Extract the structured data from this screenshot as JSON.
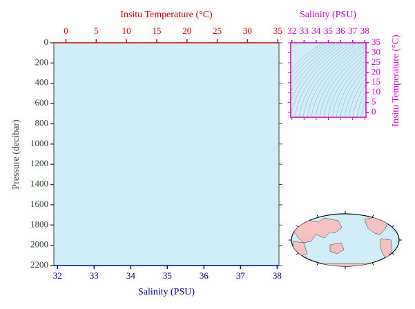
{
  "chart_data": [
    {
      "type": "line",
      "y_label": "Pressure (decibar)",
      "ylim": [
        0,
        2200
      ],
      "yticks": [
        0,
        200,
        400,
        600,
        800,
        1000,
        1200,
        1400,
        1600,
        1800,
        2000,
        2200
      ],
      "y_inverted": true,
      "x_label": "Salinity (PSU)",
      "xlim": [
        31.9,
        38.05
      ],
      "xticks": [
        32,
        33,
        34,
        35,
        36,
        37,
        38
      ],
      "x2_label": "Insitu Temperature (°C)",
      "x2lim": [
        -2,
        35.2
      ],
      "x2ticks": [
        0,
        5,
        10,
        15,
        20,
        25,
        30,
        35
      ],
      "series": []
    },
    {
      "type": "line",
      "x_label": "Salinity (PSU)",
      "xlim": [
        31.9,
        38.1
      ],
      "xticks": [
        32,
        33,
        34,
        35,
        36,
        37,
        38
      ],
      "y_label": "Insitu Temperature (°C)",
      "ylim": [
        -2.4,
        35
      ],
      "yticks": [
        0,
        5,
        10,
        15,
        20,
        25,
        30,
        35
      ],
      "series": []
    },
    {
      "type": "map"
    }
  ]
}
